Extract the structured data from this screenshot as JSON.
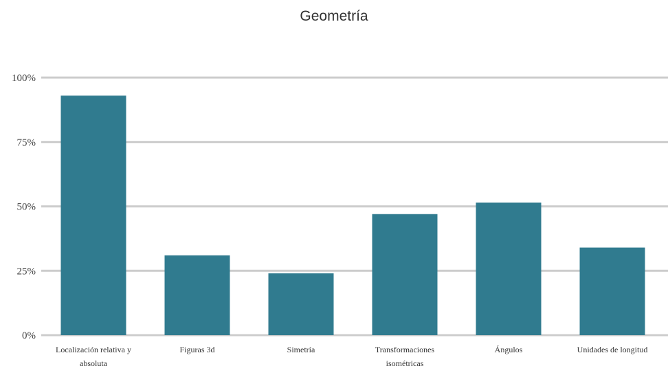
{
  "chart_data": {
    "type": "bar",
    "title": "Geometría",
    "categories": [
      [
        "Localización relativa y",
        "absoluta"
      ],
      [
        "Figuras 3d"
      ],
      [
        "Simetría"
      ],
      [
        "Transformaciones",
        "isométricas"
      ],
      [
        "Ángulos"
      ],
      [
        "Unidades de longitud"
      ]
    ],
    "values": [
      93,
      31,
      24,
      47,
      51.5,
      34
    ],
    "unit": "%",
    "ylim": [
      0,
      100
    ],
    "yticks": [
      "0%",
      "25%",
      "50%",
      "75%",
      "100%"
    ],
    "ytick_values": [
      0,
      25,
      50,
      75,
      100
    ],
    "xlabel": "",
    "ylabel": "",
    "grid": true,
    "legend": "none",
    "colors": {
      "bar": "#307b8f",
      "grid": "#cccccc"
    }
  }
}
